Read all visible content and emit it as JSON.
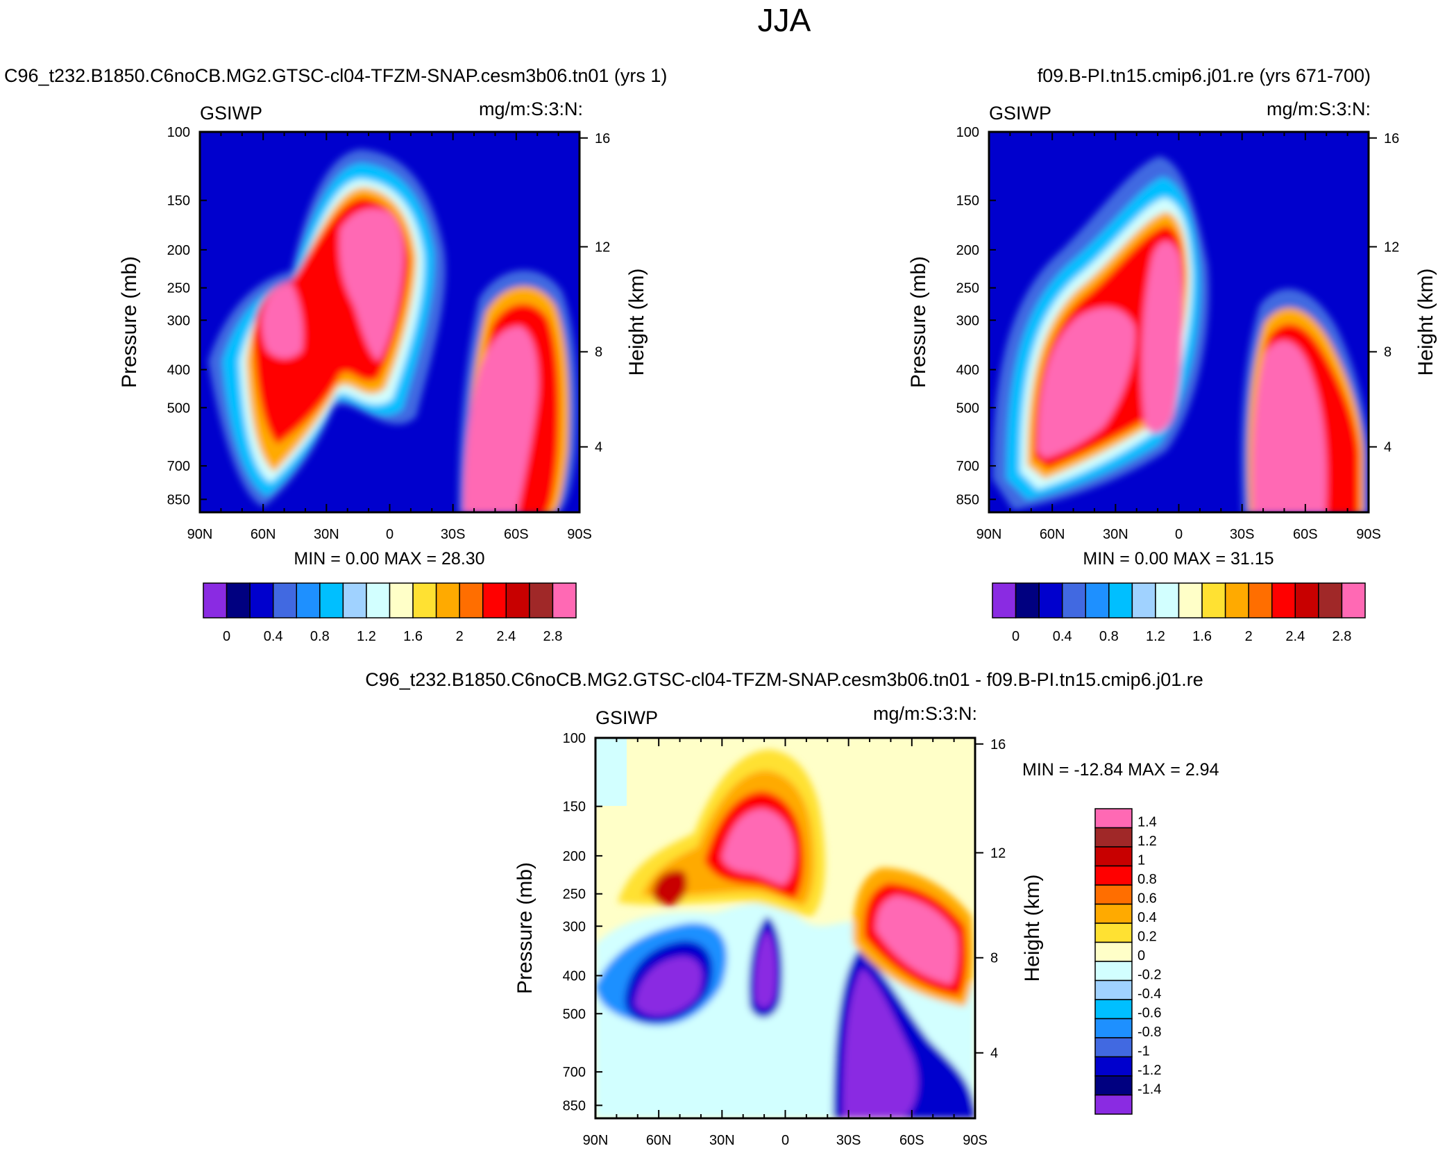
{
  "page": {
    "title": "JJA"
  },
  "colors": {
    "levels12": [
      "#8a2be2",
      "#000080",
      "#0000cd",
      "#4169e1",
      "#1e90ff",
      "#00bfff",
      "#a0d2ff",
      "#d2ffff",
      "#ffffc8",
      "#ffe132",
      "#ffaa00",
      "#ff6e00",
      "#ff0000",
      "#c80000",
      "#a02828",
      "#ff69b4"
    ],
    "diff": [
      "#8a2be2",
      "#000080",
      "#0000cd",
      "#4169e1",
      "#1e90ff",
      "#00bfff",
      "#a0d2ff",
      "#d2ffff",
      "#ffffc8",
      "#ffe132",
      "#ffaa00",
      "#ff6e00",
      "#ff0000",
      "#c80000",
      "#a02828",
      "#ff69b4"
    ]
  },
  "chart_data": [
    {
      "type": "heatmap",
      "id": "panel-left",
      "title": "C96_t232.B1850.C6noCB.MG2.GTSC-cl04-TFZM-SNAP.cesm3b06.tn01 (yrs 1)",
      "left_label": "GSIWP",
      "right_label": "mg/m:S:3:N:",
      "ylabel": "Pressure (mb)",
      "y2label": "Height (km)",
      "x_ticks": [
        "90N",
        "60N",
        "30N",
        "0",
        "30S",
        "60S",
        "90S"
      ],
      "y_ticks": [
        "100",
        "150",
        "200",
        "250",
        "300",
        "400",
        "500",
        "700",
        "850"
      ],
      "y2_ticks": [
        "16",
        "12",
        "8",
        "4"
      ],
      "stats": {
        "min_label": "MIN =",
        "min": "0.00",
        "max_label": "MAX =",
        "max": "28.30"
      },
      "colorbar_labels": [
        "0",
        "0.4",
        "0.8",
        "1.2",
        "1.6",
        "2",
        "2.4",
        "2.8"
      ]
    },
    {
      "type": "heatmap",
      "id": "panel-right",
      "title": "f09.B-PI.tn15.cmip6.j01.re (yrs 671-700)",
      "left_label": "GSIWP",
      "right_label": "mg/m:S:3:N:",
      "ylabel": "Pressure (mb)",
      "y2label": "Height (km)",
      "x_ticks": [
        "90N",
        "60N",
        "30N",
        "0",
        "30S",
        "60S",
        "90S"
      ],
      "y_ticks": [
        "100",
        "150",
        "200",
        "250",
        "300",
        "400",
        "500",
        "700",
        "850"
      ],
      "y2_ticks": [
        "16",
        "12",
        "8",
        "4"
      ],
      "stats": {
        "min_label": "MIN =",
        "min": "0.00",
        "max_label": "MAX =",
        "max": "31.15"
      },
      "colorbar_labels": [
        "0",
        "0.4",
        "0.8",
        "1.2",
        "1.6",
        "2",
        "2.4",
        "2.8"
      ]
    },
    {
      "type": "heatmap",
      "id": "panel-diff",
      "title": "C96_t232.B1850.C6noCB.MG2.GTSC-cl04-TFZM-SNAP.cesm3b06.tn01 - f09.B-PI.tn15.cmip6.j01.re",
      "left_label": "GSIWP",
      "right_label": "mg/m:S:3:N:",
      "ylabel": "Pressure (mb)",
      "y2label": "Height (km)",
      "x_ticks": [
        "90N",
        "60N",
        "30N",
        "0",
        "30S",
        "60S",
        "90S"
      ],
      "y_ticks": [
        "100",
        "150",
        "200",
        "250",
        "300",
        "400",
        "500",
        "700",
        "850"
      ],
      "y2_ticks": [
        "16",
        "12",
        "8",
        "4"
      ],
      "stats": {
        "min_label": "MIN =",
        "min": "-12.84",
        "max_label": "MAX =",
        "max": "2.94"
      },
      "colorbar_labels": [
        "1.4",
        "1.2",
        "1",
        "0.8",
        "0.6",
        "0.4",
        "0.2",
        "0",
        "-0.2",
        "-0.4",
        "-0.6",
        "-0.8",
        "-1",
        "-1.2",
        "-1.4"
      ]
    }
  ]
}
